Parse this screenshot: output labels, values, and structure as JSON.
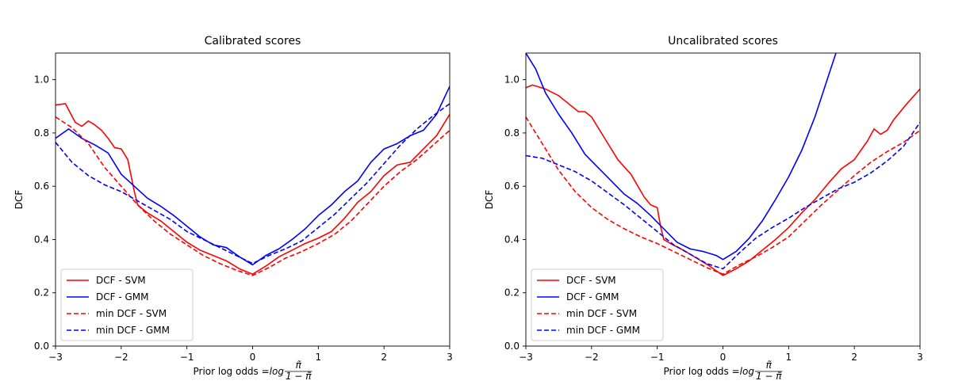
{
  "chart_data": [
    {
      "type": "line",
      "title": "Calibrated scores",
      "xlabel": "Prior log odds = ",
      "xlabel_math": {
        "base": "log",
        "num": "π̃",
        "den": "1 − π̃"
      },
      "ylabel": "DCF",
      "xlim": [
        -3,
        3
      ],
      "ylim": [
        0,
        1.1
      ],
      "xticks": [
        -3,
        -2,
        -1,
        0,
        1,
        2,
        3
      ],
      "xtick_labels": [
        "−3",
        "−2",
        "−1",
        "0",
        "1",
        "2",
        "3"
      ],
      "yticks": [
        0,
        0.2,
        0.4,
        0.6,
        0.8,
        1.0
      ],
      "ytick_labels": [
        "0.0",
        "0.2",
        "0.4",
        "0.6",
        "0.8",
        "1.0"
      ],
      "legend": "lower-left",
      "series": [
        {
          "name": "DCF - SVM",
          "color": "#ff0000",
          "dash": "solid",
          "x": [
            -3,
            -2.85,
            -2.7,
            -2.6,
            -2.5,
            -2.4,
            -2.3,
            -2.2,
            -2.1,
            -2.0,
            -1.9,
            -1.85,
            -1.8,
            -1.75,
            -1.6,
            -1.4,
            -1.2,
            -1.0,
            -0.8,
            -0.6,
            -0.4,
            -0.2,
            0,
            0.2,
            0.4,
            0.6,
            0.8,
            1.0,
            1.2,
            1.4,
            1.6,
            1.8,
            2.0,
            2.2,
            2.4,
            2.6,
            2.8,
            3
          ],
          "y": [
            0.905,
            0.91,
            0.84,
            0.825,
            0.845,
            0.83,
            0.81,
            0.78,
            0.745,
            0.74,
            0.7,
            0.64,
            0.58,
            0.53,
            0.5,
            0.47,
            0.43,
            0.39,
            0.36,
            0.34,
            0.32,
            0.29,
            0.27,
            0.3,
            0.335,
            0.36,
            0.385,
            0.405,
            0.43,
            0.48,
            0.54,
            0.58,
            0.64,
            0.68,
            0.69,
            0.74,
            0.79,
            0.87
          ]
        },
        {
          "name": "DCF - GMM",
          "color": "#0000ff",
          "dash": "solid",
          "x": [
            -3,
            -2.8,
            -2.6,
            -2.4,
            -2.2,
            -2.0,
            -1.8,
            -1.6,
            -1.4,
            -1.2,
            -1.0,
            -0.8,
            -0.6,
            -0.4,
            -0.2,
            0,
            0.2,
            0.4,
            0.6,
            0.8,
            1.0,
            1.2,
            1.4,
            1.6,
            1.8,
            2.0,
            2.2,
            2.4,
            2.6,
            2.8,
            3
          ],
          "y": [
            0.78,
            0.815,
            0.78,
            0.755,
            0.725,
            0.645,
            0.6,
            0.555,
            0.525,
            0.49,
            0.45,
            0.41,
            0.38,
            0.37,
            0.335,
            0.305,
            0.34,
            0.365,
            0.4,
            0.44,
            0.49,
            0.53,
            0.58,
            0.62,
            0.69,
            0.74,
            0.76,
            0.79,
            0.81,
            0.87,
            0.975
          ]
        },
        {
          "name": "min DCF - SVM",
          "color": "#ff0000",
          "dash": "dashed",
          "x": [
            -3,
            -2.75,
            -2.5,
            -2.25,
            -2.0,
            -1.75,
            -1.5,
            -1.25,
            -1.0,
            -0.75,
            -0.5,
            -0.25,
            0,
            0.25,
            0.5,
            0.75,
            1.0,
            1.25,
            1.5,
            1.75,
            2.0,
            2.25,
            2.5,
            2.75,
            3
          ],
          "y": [
            0.86,
            0.82,
            0.76,
            0.67,
            0.6,
            0.53,
            0.47,
            0.42,
            0.38,
            0.34,
            0.31,
            0.285,
            0.265,
            0.295,
            0.33,
            0.355,
            0.385,
            0.42,
            0.47,
            0.535,
            0.6,
            0.655,
            0.7,
            0.755,
            0.81
          ]
        },
        {
          "name": "min DCF - GMM",
          "color": "#0000ff",
          "dash": "dashed",
          "x": [
            -3,
            -2.75,
            -2.5,
            -2.25,
            -2.0,
            -1.75,
            -1.5,
            -1.25,
            -1.0,
            -0.75,
            -0.5,
            -0.25,
            0,
            0.25,
            0.5,
            0.75,
            1.0,
            1.25,
            1.5,
            1.75,
            2.0,
            2.25,
            2.5,
            2.75,
            3
          ],
          "y": [
            0.765,
            0.69,
            0.64,
            0.605,
            0.58,
            0.545,
            0.51,
            0.475,
            0.43,
            0.4,
            0.37,
            0.34,
            0.31,
            0.34,
            0.365,
            0.395,
            0.445,
            0.495,
            0.555,
            0.615,
            0.685,
            0.755,
            0.815,
            0.865,
            0.91
          ]
        }
      ]
    },
    {
      "type": "line",
      "title": "Uncalibrated scores",
      "xlabel": "Prior log odds = ",
      "xlabel_math": {
        "base": "log",
        "num": "π̃",
        "den": "1 − π̃"
      },
      "ylabel": "DCF",
      "xlim": [
        -3,
        3
      ],
      "ylim": [
        0,
        1.1
      ],
      "xticks": [
        -3,
        -2,
        -1,
        0,
        1,
        2,
        3
      ],
      "xtick_labels": [
        "−3",
        "−2",
        "−1",
        "0",
        "1",
        "2",
        "3"
      ],
      "yticks": [
        0,
        0.2,
        0.4,
        0.6,
        0.8,
        1.0
      ],
      "ytick_labels": [
        "0.0",
        "0.2",
        "0.4",
        "0.6",
        "0.8",
        "1.0"
      ],
      "legend": "lower-left",
      "series": [
        {
          "name": "DCF - SVM",
          "color": "#ff0000",
          "dash": "solid",
          "x": [
            -3,
            -2.9,
            -2.7,
            -2.5,
            -2.3,
            -2.2,
            -2.1,
            -2.0,
            -1.8,
            -1.6,
            -1.4,
            -1.2,
            -1.1,
            -1.0,
            -0.95,
            -0.9,
            -0.8,
            -0.6,
            -0.4,
            -0.2,
            0,
            0.2,
            0.4,
            0.6,
            0.8,
            1.0,
            1.2,
            1.4,
            1.6,
            1.8,
            2.0,
            2.2,
            2.3,
            2.4,
            2.5,
            2.6,
            2.8,
            3
          ],
          "y": [
            0.97,
            0.98,
            0.965,
            0.94,
            0.9,
            0.88,
            0.88,
            0.86,
            0.78,
            0.7,
            0.645,
            0.56,
            0.53,
            0.52,
            0.45,
            0.4,
            0.385,
            0.36,
            0.33,
            0.3,
            0.265,
            0.29,
            0.32,
            0.36,
            0.4,
            0.445,
            0.5,
            0.55,
            0.61,
            0.665,
            0.7,
            0.77,
            0.815,
            0.795,
            0.81,
            0.85,
            0.91,
            0.965
          ]
        },
        {
          "name": "DCF - GMM",
          "color": "#0000ff",
          "dash": "solid",
          "x": [
            -3,
            -2.85,
            -2.7,
            -2.5,
            -2.3,
            -2.1,
            -1.9,
            -1.7,
            -1.5,
            -1.3,
            -1.1,
            -0.9,
            -0.7,
            -0.5,
            -0.3,
            -0.1,
            0,
            0.2,
            0.4,
            0.6,
            0.8,
            1.0,
            1.2,
            1.4,
            1.6,
            1.72
          ],
          "y": [
            1.1,
            1.04,
            0.95,
            0.87,
            0.8,
            0.72,
            0.67,
            0.62,
            0.57,
            0.535,
            0.49,
            0.44,
            0.39,
            0.365,
            0.355,
            0.34,
            0.325,
            0.355,
            0.405,
            0.47,
            0.55,
            0.635,
            0.735,
            0.86,
            1.01,
            1.1
          ]
        },
        {
          "name": "min DCF - SVM",
          "color": "#ff0000",
          "dash": "dashed",
          "x": [
            -3,
            -2.75,
            -2.5,
            -2.25,
            -2.0,
            -1.75,
            -1.5,
            -1.25,
            -1.0,
            -0.75,
            -0.5,
            -0.25,
            0,
            0.25,
            0.5,
            0.75,
            1.0,
            1.25,
            1.5,
            1.75,
            2.0,
            2.25,
            2.5,
            2.75,
            3
          ],
          "y": [
            0.86,
            0.76,
            0.66,
            0.58,
            0.52,
            0.475,
            0.44,
            0.41,
            0.385,
            0.355,
            0.325,
            0.295,
            0.27,
            0.305,
            0.335,
            0.37,
            0.41,
            0.47,
            0.53,
            0.585,
            0.64,
            0.69,
            0.73,
            0.765,
            0.81
          ]
        },
        {
          "name": "min DCF - GMM",
          "color": "#0000ff",
          "dash": "dashed",
          "x": [
            -3,
            -2.75,
            -2.5,
            -2.25,
            -2.0,
            -1.75,
            -1.5,
            -1.25,
            -1.0,
            -0.75,
            -0.5,
            -0.25,
            0,
            0.25,
            0.5,
            0.75,
            1.0,
            1.25,
            1.5,
            1.75,
            2.0,
            2.25,
            2.5,
            2.75,
            3
          ],
          "y": [
            0.715,
            0.705,
            0.68,
            0.655,
            0.62,
            0.575,
            0.53,
            0.48,
            0.43,
            0.38,
            0.345,
            0.31,
            0.29,
            0.35,
            0.405,
            0.445,
            0.48,
            0.52,
            0.555,
            0.59,
            0.615,
            0.65,
            0.695,
            0.75,
            0.84
          ]
        }
      ]
    }
  ]
}
